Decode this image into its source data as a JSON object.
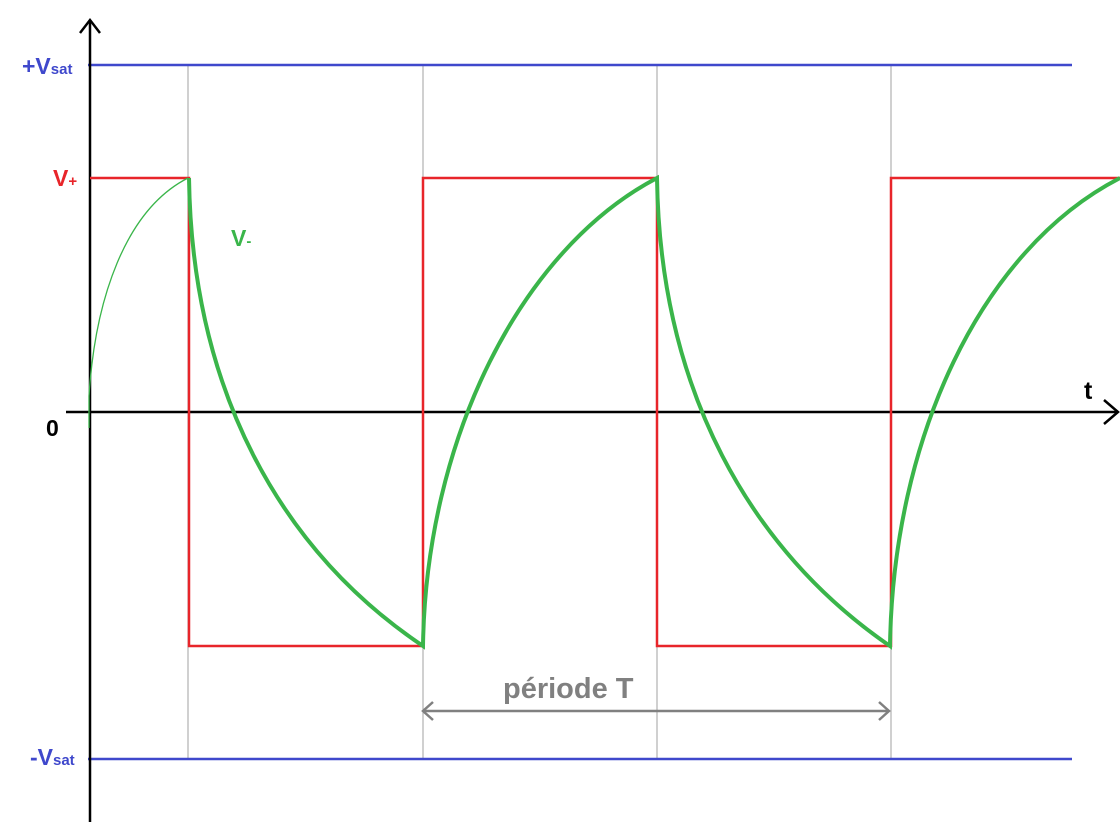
{
  "diagram": {
    "labels": {
      "vsat_pos": {
        "main": "+V",
        "sub": "sat"
      },
      "vsat_neg": {
        "main": "-V",
        "sub": "sat"
      },
      "v_plus": {
        "main": "V",
        "sub": "+"
      },
      "v_minus": {
        "main": "V",
        "sub": "-"
      },
      "zero": "0",
      "t_axis": "t",
      "period": "période T"
    },
    "colors": {
      "axis": "#000000",
      "saturation": "#3f48cc",
      "square_wave": "#e8252a",
      "capacitor_wave": "#3ab54a",
      "v_plus_label": "#e8252a",
      "v_minus_label": "#3ab54a",
      "sat_label": "#3f48cc",
      "period": "#808080",
      "guide": "#a0a0a0"
    }
  }
}
